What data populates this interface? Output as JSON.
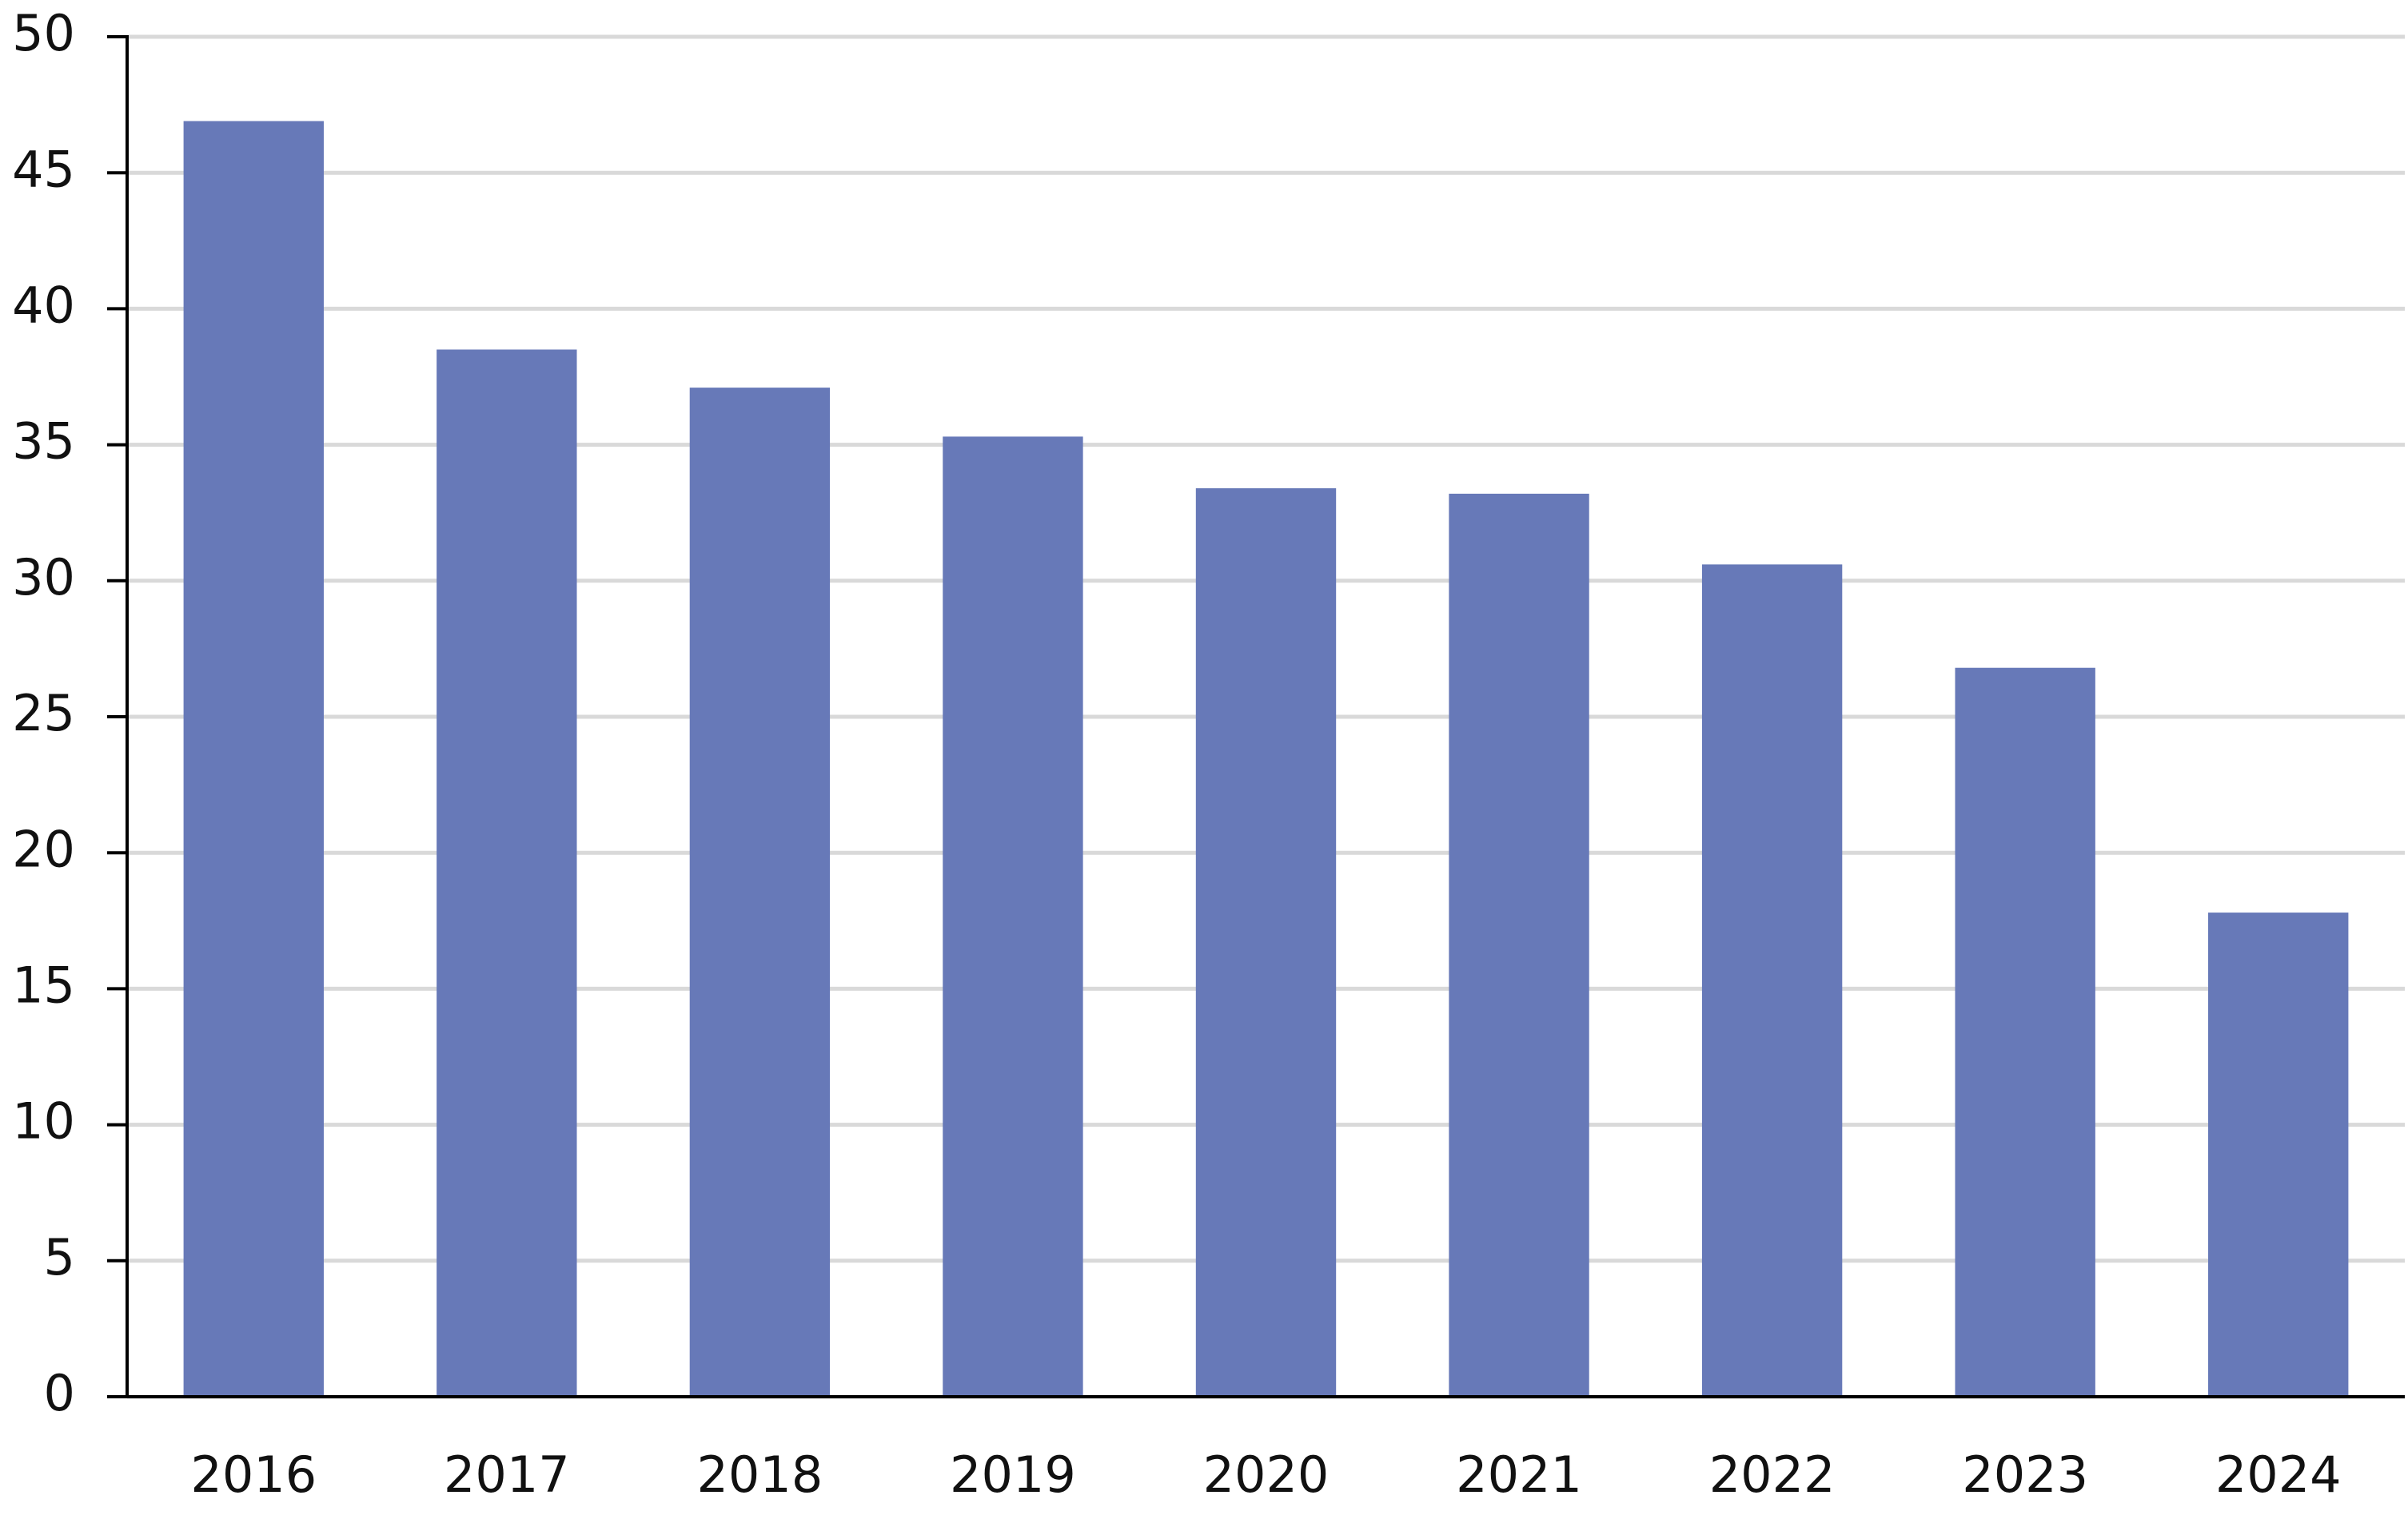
{
  "chart_data": {
    "type": "bar",
    "categories": [
      "2016",
      "2017",
      "2018",
      "2019",
      "2020",
      "2021",
      "2022",
      "2023",
      "2024"
    ],
    "values": [
      46.9,
      38.5,
      37.1,
      35.3,
      33.4,
      33.2,
      30.6,
      26.8,
      17.8
    ],
    "color": "#6779b8",
    "ylim": [
      0,
      50
    ],
    "yticks": [
      0,
      5,
      10,
      15,
      20,
      25,
      30,
      35,
      40,
      45,
      50
    ],
    "grid": true
  }
}
